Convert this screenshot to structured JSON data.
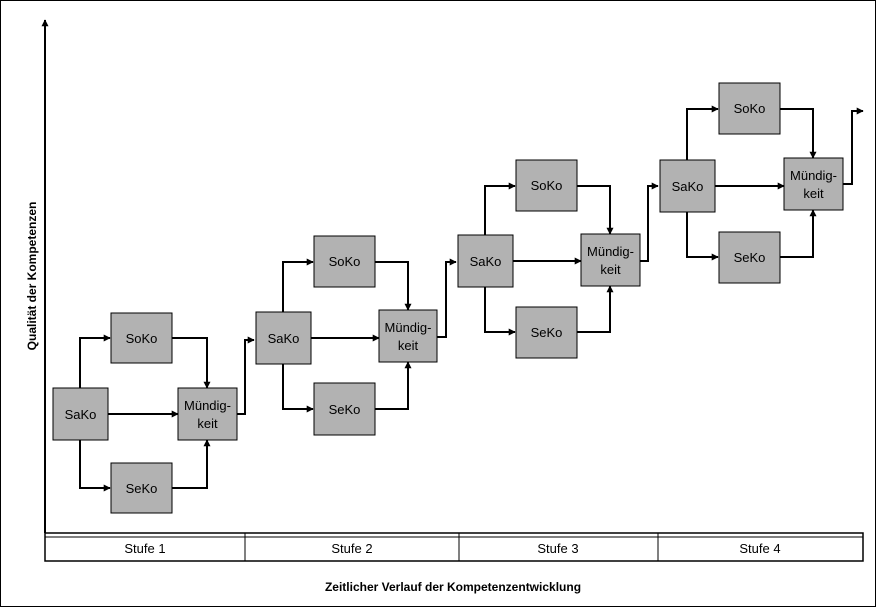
{
  "axes": {
    "y_title": "Qualität der Kompetenzen",
    "x_title": "Zeitlicher Verlauf der Kompetenzentwicklung"
  },
  "stages": [
    {
      "label": "Stufe 1",
      "sako": "SaKo",
      "soko": "SoKo",
      "seko": "SeKo",
      "mue_line1": "Mündig-",
      "mue_line2": "keit"
    },
    {
      "label": "Stufe 2",
      "sako": "SaKo",
      "soko": "SoKo",
      "seko": "SeKo",
      "mue_line1": "Mündig-",
      "mue_line2": "keit"
    },
    {
      "label": "Stufe 3",
      "sako": "SaKo",
      "soko": "SoKo",
      "seko": "SeKo",
      "mue_line1": "Mündig-",
      "mue_line2": "keit"
    },
    {
      "label": "Stufe 4",
      "sako": "SaKo",
      "soko": "SoKo",
      "seko": "SeKo",
      "mue_line1": "Mündig-",
      "mue_line2": "keit"
    }
  ],
  "colors": {
    "box_fill": "#b2b2b2",
    "line": "#000000",
    "background": "#ffffff"
  }
}
